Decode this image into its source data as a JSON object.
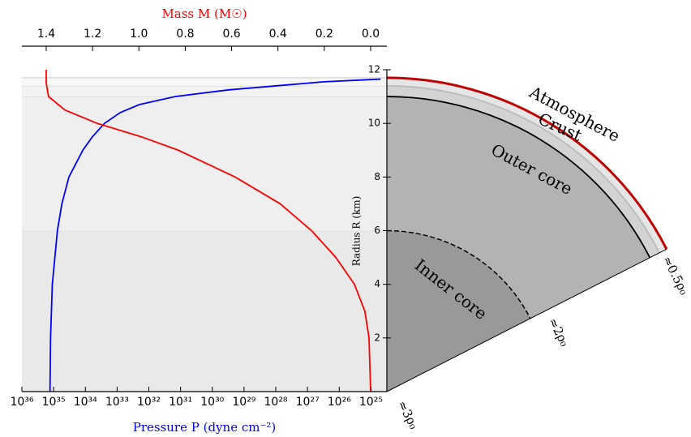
{
  "chart_data": {
    "type": "line",
    "x_label": "Pressure P (dyne cm⁻²)",
    "x2_label": "Mass M (M☉)",
    "y_label": "Radius R (km)",
    "xscale": "log",
    "xlim": [
      1e+36,
      3.16e+24
    ],
    "xticks": [
      {
        "value": 1e+36,
        "label": "10³⁶"
      },
      {
        "value": 1e+35,
        "label": "10³⁵"
      },
      {
        "value": 1e+34,
        "label": "10³⁴"
      },
      {
        "value": 1e+33,
        "label": "10³³"
      },
      {
        "value": 1e+32,
        "label": "10³²"
      },
      {
        "value": 1e+31,
        "label": "10³¹"
      },
      {
        "value": 1e+30,
        "label": "10³⁰"
      },
      {
        "value": 1e+29,
        "label": "10²⁹"
      },
      {
        "value": 1e+28,
        "label": "10²⁸"
      },
      {
        "value": 1e+27,
        "label": "10²⁷"
      },
      {
        "value": 1e+26,
        "label": "10²⁶"
      },
      {
        "value": 1e+25,
        "label": "10²⁵"
      }
    ],
    "x2lim": [
      1.505,
      -0.07
    ],
    "x2ticks": [
      1.4,
      1.2,
      {
        "value": 1,
        "label": "1.0"
      },
      0.8,
      0.6,
      0.4,
      0.2,
      {
        "value": 0,
        "label": "0.0"
      }
    ],
    "ylim": [
      0,
      12
    ],
    "yticks": [
      2,
      4,
      6,
      8,
      10,
      12
    ],
    "series": [
      {
        "color": "#0000ff",
        "axis": "x",
        "values": [
          1.3e+35,
          1.25e+35,
          1.1e+35,
          7.6e+34,
          5.5e+34,
          3.3e+34,
          1.2e+34,
          6e+33,
          2.5e+33,
          8e+32,
          2e+32,
          1.5e+31,
          3e+29,
          3e+27,
          3e+26,
          5e+24
        ],
        "radius": [
          0,
          2,
          4,
          6,
          7,
          8,
          9,
          9.5,
          10,
          10.4,
          10.7,
          11.0,
          11.25,
          11.45,
          11.55,
          11.65
        ]
      },
      {
        "color": "#ff0000",
        "axis": "x2",
        "values": [
          0,
          0.007,
          0.025,
          0.07,
          0.15,
          0.255,
          0.39,
          0.585,
          0.83,
          0.99,
          1.18,
          1.32,
          1.39,
          1.4,
          1.4
        ],
        "radius": [
          0,
          2,
          3,
          4,
          5,
          6,
          7,
          8,
          9,
          9.5,
          10,
          10.5,
          11,
          11.5,
          12
        ]
      }
    ],
    "layers": [
      {
        "label": "Inner core",
        "radius": 6
      },
      {
        "label": "Outer core",
        "radius": 11
      },
      {
        "label": "Crust",
        "radius": 11.4
      },
      {
        "label": "Atmosphere",
        "radius": 11.7
      }
    ],
    "density_labels": [
      "≈3ρ₀",
      "≈2ρ₀",
      "≈0.5ρ₀"
    ]
  }
}
